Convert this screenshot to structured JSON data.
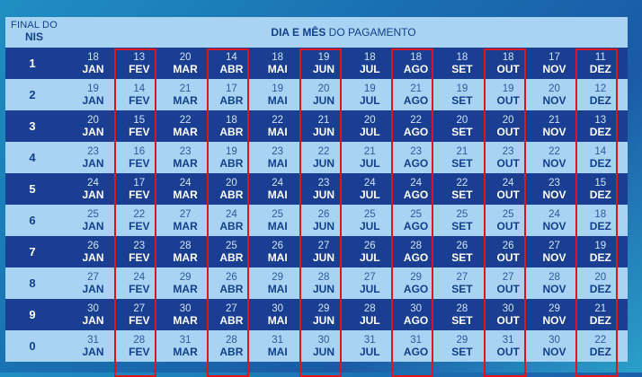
{
  "header": {
    "nis_line1": "FINAL DO",
    "nis_line2": "NIS",
    "title_bold": "DIA E MÊS",
    "title_rest": " DO PAGAMENTO"
  },
  "months": [
    "JAN",
    "FEV",
    "MAR",
    "ABR",
    "MAI",
    "JUN",
    "JUL",
    "AGO",
    "SET",
    "OUT",
    "NOV",
    "DEZ"
  ],
  "rows": [
    {
      "nis": "1",
      "days": [
        "18",
        "13",
        "20",
        "14",
        "18",
        "19",
        "18",
        "18",
        "18",
        "18",
        "17",
        "11"
      ]
    },
    {
      "nis": "2",
      "days": [
        "19",
        "14",
        "21",
        "17",
        "19",
        "20",
        "19",
        "21",
        "19",
        "19",
        "20",
        "12"
      ]
    },
    {
      "nis": "3",
      "days": [
        "20",
        "15",
        "22",
        "18",
        "22",
        "21",
        "20",
        "22",
        "20",
        "20",
        "21",
        "13"
      ]
    },
    {
      "nis": "4",
      "days": [
        "23",
        "16",
        "23",
        "19",
        "23",
        "22",
        "21",
        "23",
        "21",
        "23",
        "22",
        "14"
      ]
    },
    {
      "nis": "5",
      "days": [
        "24",
        "17",
        "24",
        "20",
        "24",
        "23",
        "24",
        "24",
        "22",
        "24",
        "23",
        "15"
      ]
    },
    {
      "nis": "6",
      "days": [
        "25",
        "22",
        "27",
        "24",
        "25",
        "26",
        "25",
        "25",
        "25",
        "25",
        "24",
        "18"
      ]
    },
    {
      "nis": "7",
      "days": [
        "26",
        "23",
        "28",
        "25",
        "26",
        "27",
        "26",
        "28",
        "26",
        "26",
        "27",
        "19"
      ]
    },
    {
      "nis": "8",
      "days": [
        "27",
        "24",
        "29",
        "26",
        "29",
        "28",
        "27",
        "29",
        "27",
        "27",
        "28",
        "20"
      ]
    },
    {
      "nis": "9",
      "days": [
        "30",
        "27",
        "30",
        "27",
        "30",
        "29",
        "28",
        "30",
        "28",
        "30",
        "29",
        "21"
      ]
    },
    {
      "nis": "0",
      "days": [
        "31",
        "28",
        "31",
        "28",
        "31",
        "30",
        "31",
        "31",
        "29",
        "31",
        "30",
        "22"
      ]
    }
  ],
  "highlighted_months": [
    "FEV",
    "ABR",
    "JUN",
    "AGO",
    "OUT",
    "DEZ"
  ],
  "colors": {
    "dark_row": "#1a3f92",
    "light_row": "#a9d3f2",
    "highlight": "#e0141b"
  }
}
